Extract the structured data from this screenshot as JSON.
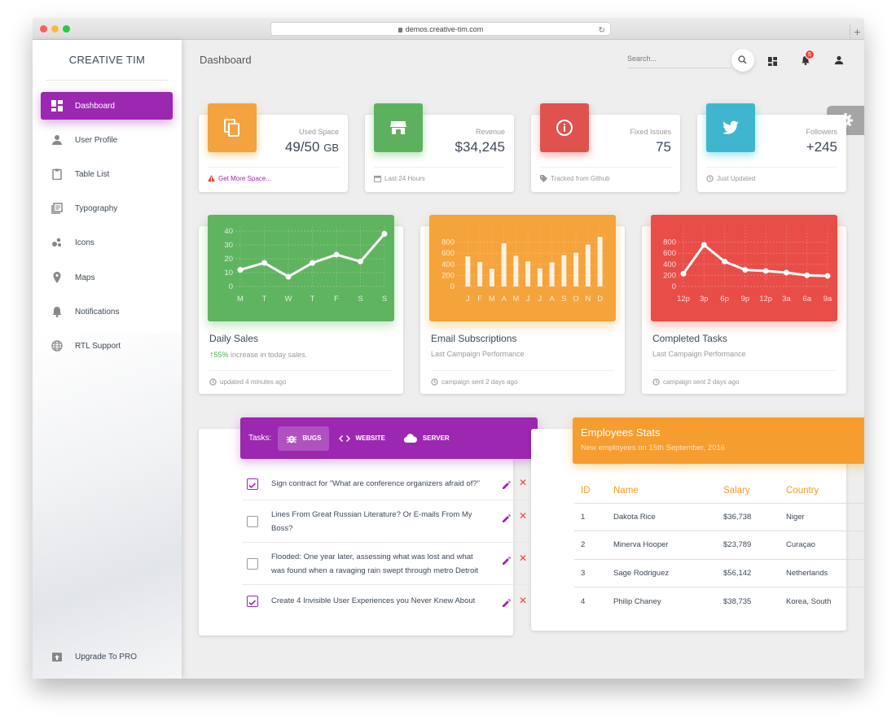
{
  "browser": {
    "url": "demos.creative-tim.com"
  },
  "sidebar": {
    "brand": "CREATIVE TIM",
    "items": [
      {
        "label": "Dashboard",
        "icon": "dashboard-icon",
        "active": true
      },
      {
        "label": "User Profile",
        "icon": "person-icon"
      },
      {
        "label": "Table List",
        "icon": "clipboard-icon"
      },
      {
        "label": "Typography",
        "icon": "library-books-icon"
      },
      {
        "label": "Icons",
        "icon": "bubble-chart-icon"
      },
      {
        "label": "Maps",
        "icon": "location-pin-icon"
      },
      {
        "label": "Notifications",
        "icon": "bell-icon"
      },
      {
        "label": "RTL Support",
        "icon": "language-globe-icon"
      }
    ],
    "upgrade": "Upgrade To PRO"
  },
  "topbar": {
    "title": "Dashboard",
    "search_placeholder": "Search...",
    "notification_count": "5"
  },
  "stats": [
    {
      "category": "Used Space",
      "value": "49/50",
      "unit": "GB",
      "footer": "Get More Space...",
      "color": "#f4a340",
      "icon": "content-copy-icon"
    },
    {
      "category": "Revenue",
      "value": "$34,245",
      "footer": "Last 24 Hours",
      "color": "#5db15e",
      "icon": "store-icon"
    },
    {
      "category": "Fixed Issues",
      "value": "75",
      "footer": "Tracked from Github",
      "color": "#e0524d",
      "icon": "info-outline-icon"
    },
    {
      "category": "Followers",
      "value": "+245",
      "footer": "Just Updated",
      "color": "#40b6ce",
      "icon": "twitter-icon"
    }
  ],
  "charts": [
    {
      "title": "Daily Sales",
      "sub_highlight": "55%",
      "sub_text": " increase in today sales.",
      "footer": "updated 4 minutes ago"
    },
    {
      "title": "Email Subscriptions",
      "sub_text": "Last Campaign Performance",
      "footer": "campaign sent 2 days ago"
    },
    {
      "title": "Completed Tasks",
      "sub_text": "Last Campaign Performance",
      "footer": "campaign sent 2 days ago"
    }
  ],
  "chart_data": [
    {
      "type": "line",
      "categories": [
        "M",
        "T",
        "W",
        "T",
        "F",
        "S",
        "S"
      ],
      "values": [
        12,
        17,
        7,
        17,
        23,
        18,
        38
      ],
      "ylim": [
        0,
        40
      ],
      "yticks": [
        "40",
        "30",
        "20",
        "10",
        "0"
      ],
      "color": "#4caf50"
    },
    {
      "type": "bar",
      "categories": [
        "J",
        "F",
        "M",
        "A",
        "M",
        "J",
        "J",
        "A",
        "S",
        "O",
        "N",
        "D"
      ],
      "values": [
        542,
        443,
        320,
        780,
        553,
        453,
        326,
        434,
        568,
        610,
        756,
        895
      ],
      "ylim": [
        0,
        1000
      ],
      "yticks": [
        "800",
        "600",
        "400",
        "200",
        "0"
      ],
      "color": "#f5a23a"
    },
    {
      "type": "line",
      "categories": [
        "12p",
        "3p",
        "6p",
        "9p",
        "12p",
        "3a",
        "6a",
        "9a"
      ],
      "values": [
        230,
        750,
        450,
        300,
        280,
        250,
        200,
        190
      ],
      "ylim": [
        0,
        1000
      ],
      "yticks": [
        "800",
        "600",
        "400",
        "200",
        "0"
      ],
      "color": "#e94d48"
    }
  ],
  "tasks": {
    "label": "Tasks:",
    "tabs": [
      {
        "label": "BUGS",
        "icon": "bug-icon",
        "active": true
      },
      {
        "label": "WEBSITE",
        "icon": "code-icon"
      },
      {
        "label": "SERVER",
        "icon": "cloud-icon"
      }
    ],
    "items": [
      {
        "text": "Sign contract for \"What are conference organizers afraid of?\"",
        "checked": true
      },
      {
        "text": "Lines From Great Russian Literature? Or E-mails From My Boss?",
        "checked": false
      },
      {
        "text": "Flooded: One year later, assessing what was lost and what was found when a ravaging rain swept through metro Detroit",
        "checked": false
      },
      {
        "text": "Create 4 Invisible User Experiences you Never Knew About",
        "checked": true
      }
    ]
  },
  "employees": {
    "title": "Employees Stats",
    "subtitle": "New employees on 15th September, 2016",
    "columns": [
      "ID",
      "Name",
      "Salary",
      "Country"
    ],
    "rows": [
      [
        "1",
        "Dakota Rice",
        "$36,738",
        "Niger"
      ],
      [
        "2",
        "Minerva Hooper",
        "$23,789",
        "Curaçao"
      ],
      [
        "3",
        "Sage Rodriguez",
        "$56,142",
        "Netherlands"
      ],
      [
        "4",
        "Philip Chaney",
        "$38,735",
        "Korea, South"
      ]
    ]
  },
  "colors": {
    "primary": "#9c27b0",
    "warning": "#f69d2f",
    "danger": "#f44336"
  }
}
